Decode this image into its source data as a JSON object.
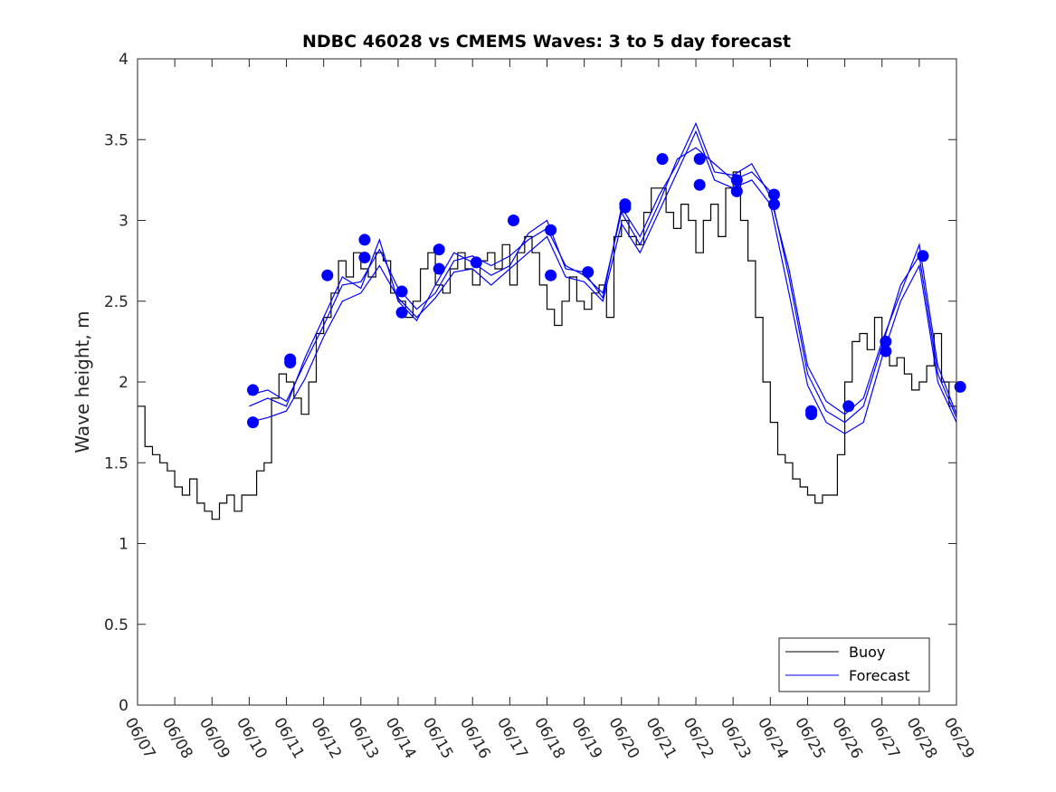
{
  "chart_data": {
    "type": "line",
    "title": "NDBC 46028 vs CMEMS Waves: 3 to 5 day forecast",
    "xlabel": "",
    "ylabel": "Wave height, m",
    "xlim": [
      0,
      22
    ],
    "ylim": [
      0,
      4
    ],
    "x_unit": "days since 06/07 00:00",
    "x_tick_labels": [
      "06/07",
      "06/08",
      "06/09",
      "06/10",
      "06/11",
      "06/12",
      "06/13",
      "06/14",
      "06/15",
      "06/16",
      "06/17",
      "06/18",
      "06/19",
      "06/20",
      "06/21",
      "06/22",
      "06/23",
      "06/24",
      "06/25",
      "06/26",
      "06/27",
      "06/28",
      "06/29"
    ],
    "y_ticks": [
      0,
      0.5,
      1,
      1.5,
      2,
      2.5,
      3,
      3.5,
      4
    ],
    "y_tick_labels": [
      "0",
      "0.5",
      "1",
      "1.5",
      "2",
      "2.5",
      "3",
      "3.5",
      "4"
    ],
    "grid": false,
    "legend": {
      "position": "bottom-right",
      "entries": [
        "Buoy",
        "Forecast"
      ]
    },
    "colors": {
      "buoy": "#000000",
      "forecast": "#0000ff",
      "markers": "#0000ff"
    },
    "series": [
      {
        "name": "Buoy",
        "x": [
          0,
          0.2,
          0.4,
          0.6,
          0.8,
          1.0,
          1.2,
          1.4,
          1.6,
          1.8,
          2.0,
          2.2,
          2.4,
          2.6,
          2.8,
          3.0,
          3.2,
          3.4,
          3.6,
          3.8,
          4.0,
          4.2,
          4.4,
          4.6,
          4.8,
          5.0,
          5.2,
          5.4,
          5.6,
          5.8,
          6.0,
          6.2,
          6.4,
          6.6,
          6.8,
          7.0,
          7.2,
          7.4,
          7.6,
          7.8,
          8.0,
          8.2,
          8.4,
          8.6,
          8.8,
          9.0,
          9.2,
          9.4,
          9.6,
          9.8,
          10.0,
          10.2,
          10.4,
          10.6,
          10.8,
          11.0,
          11.2,
          11.4,
          11.6,
          11.8,
          12.0,
          12.2,
          12.4,
          12.6,
          12.8,
          13.0,
          13.2,
          13.4,
          13.6,
          13.8,
          14.0,
          14.2,
          14.4,
          14.6,
          14.8,
          15.0,
          15.2,
          15.4,
          15.6,
          15.8,
          16.0,
          16.2,
          16.4,
          16.6,
          16.8,
          17.0,
          17.2,
          17.4,
          17.6,
          17.8,
          18.0,
          18.2,
          18.4,
          18.6,
          18.8,
          19.0,
          19.2,
          19.4,
          19.6,
          19.8,
          20.0,
          20.2,
          20.4,
          20.6,
          20.8,
          21.0,
          21.2,
          21.4,
          21.6,
          21.8,
          22.0
        ],
        "y": [
          1.85,
          1.6,
          1.55,
          1.5,
          1.45,
          1.35,
          1.3,
          1.4,
          1.25,
          1.2,
          1.15,
          1.25,
          1.3,
          1.2,
          1.3,
          1.3,
          1.45,
          1.5,
          1.9,
          2.05,
          2.0,
          1.9,
          1.8,
          2.0,
          2.3,
          2.4,
          2.55,
          2.75,
          2.65,
          2.8,
          2.7,
          2.65,
          2.8,
          2.75,
          2.55,
          2.5,
          2.4,
          2.5,
          2.7,
          2.8,
          2.6,
          2.55,
          2.7,
          2.8,
          2.7,
          2.6,
          2.75,
          2.8,
          2.7,
          2.85,
          2.6,
          2.8,
          2.9,
          2.8,
          2.6,
          2.45,
          2.35,
          2.5,
          2.65,
          2.5,
          2.45,
          2.55,
          2.6,
          2.4,
          2.9,
          3.0,
          2.9,
          2.85,
          3.05,
          3.2,
          3.2,
          3.05,
          2.95,
          3.1,
          3.0,
          2.8,
          3.0,
          3.1,
          2.9,
          3.2,
          3.3,
          3.0,
          2.75,
          2.4,
          2.0,
          1.75,
          1.55,
          1.5,
          1.4,
          1.35,
          1.3,
          1.25,
          1.3,
          1.3,
          1.55,
          2.0,
          2.25,
          2.3,
          2.2,
          2.4,
          2.2,
          2.1,
          2.15,
          2.05,
          1.95,
          2.0,
          2.1,
          2.3,
          2.0,
          1.85,
          1.8
        ]
      },
      {
        "name": "Forecast",
        "x": [
          3.0,
          3.5,
          4.0,
          4.5,
          5.0,
          5.5,
          6.0,
          6.5,
          7.0,
          7.5,
          8.0,
          8.5,
          9.0,
          9.5,
          10.0,
          10.5,
          11.0,
          11.5,
          12.0,
          12.5,
          13.0,
          13.5,
          14.0,
          14.5,
          15.0,
          15.5,
          16.0,
          16.5,
          17.0,
          17.5,
          18.0,
          18.5,
          19.0,
          19.5,
          20.0,
          20.5,
          21.0,
          21.5,
          22.0
        ],
        "y": [
          1.92,
          1.95,
          1.88,
          2.12,
          2.35,
          2.6,
          2.62,
          2.82,
          2.58,
          2.45,
          2.55,
          2.75,
          2.78,
          2.72,
          2.78,
          2.88,
          2.95,
          2.72,
          2.66,
          2.55,
          3.05,
          2.85,
          3.1,
          3.38,
          3.45,
          3.35,
          3.25,
          3.3,
          3.18,
          2.65,
          2.05,
          1.82,
          1.75,
          1.85,
          2.22,
          2.6,
          2.78,
          2.05,
          1.78
        ]
      },
      {
        "name": "",
        "x": [
          3.0,
          3.5,
          4.0,
          4.5,
          5.0,
          5.5,
          6.0,
          6.5,
          7.0,
          7.5,
          8.0,
          8.5,
          9.0,
          9.5,
          10.0,
          10.5,
          11.0,
          11.5,
          12.0,
          12.5,
          13.0,
          13.5,
          14.0,
          14.5,
          15.0,
          15.5,
          16.0,
          16.5,
          17.0,
          17.5,
          18.0,
          18.5,
          19.0,
          19.5,
          20.0,
          20.5,
          21.0,
          21.5,
          22.0
        ],
        "y": [
          1.75,
          1.78,
          1.82,
          2.02,
          2.28,
          2.5,
          2.55,
          2.72,
          2.52,
          2.4,
          2.52,
          2.68,
          2.7,
          2.6,
          2.7,
          2.8,
          2.9,
          2.65,
          2.62,
          2.5,
          2.98,
          2.8,
          3.05,
          3.3,
          3.55,
          3.25,
          3.2,
          3.25,
          3.1,
          2.55,
          1.98,
          1.75,
          1.68,
          1.75,
          2.15,
          2.5,
          2.72,
          2.0,
          1.75
        ]
      },
      {
        "name": "",
        "x": [
          3.0,
          3.5,
          4.0,
          4.5,
          5.0,
          5.5,
          6.0,
          6.5,
          7.0,
          7.5,
          8.0,
          8.5,
          9.0,
          9.5,
          10.0,
          10.5,
          11.0,
          11.5,
          12.0,
          12.5,
          13.0,
          13.5,
          14.0,
          14.5,
          15.0,
          15.5,
          16.0,
          16.5,
          17.0,
          17.5,
          18.0,
          18.5,
          19.0,
          19.5,
          20.0,
          20.5,
          21.0,
          21.5,
          22.0
        ],
        "y": [
          1.85,
          1.9,
          1.85,
          2.15,
          2.4,
          2.65,
          2.58,
          2.88,
          2.5,
          2.38,
          2.6,
          2.8,
          2.74,
          2.66,
          2.72,
          2.92,
          3.0,
          2.7,
          2.68,
          2.52,
          3.08,
          2.9,
          3.15,
          3.35,
          3.6,
          3.3,
          3.28,
          3.35,
          3.15,
          2.7,
          2.1,
          1.88,
          1.8,
          1.9,
          2.25,
          2.55,
          2.85,
          2.1,
          1.8
        ]
      }
    ],
    "markers": {
      "x": [
        3.1,
        3.1,
        4.1,
        4.1,
        5.1,
        6.1,
        6.1,
        7.1,
        7.1,
        8.1,
        8.1,
        9.1,
        10.1,
        11.1,
        11.1,
        12.1,
        13.1,
        13.1,
        14.1,
        15.1,
        15.1,
        16.1,
        16.1,
        17.1,
        17.1,
        18.1,
        18.1,
        19.1,
        20.1,
        20.1,
        21.1,
        22.1
      ],
      "y": [
        1.95,
        1.75,
        2.14,
        2.12,
        2.66,
        2.88,
        2.77,
        2.43,
        2.56,
        2.7,
        2.82,
        2.74,
        3.0,
        2.94,
        2.66,
        2.68,
        3.1,
        3.08,
        3.38,
        3.38,
        3.22,
        3.25,
        3.18,
        3.16,
        3.1,
        1.82,
        1.8,
        1.85,
        2.25,
        2.19,
        2.78,
        1.97
      ]
    }
  }
}
